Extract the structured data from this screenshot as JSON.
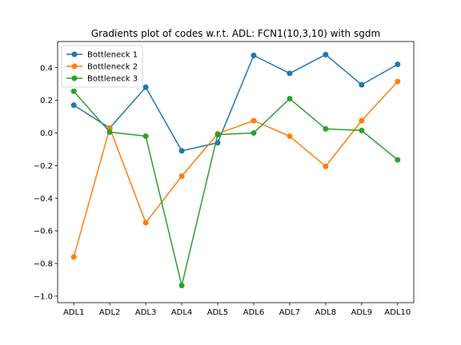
{
  "chart_data": {
    "type": "line",
    "title": "Gradients plot of codes w.r.t. ADL: FCN1(10,3,10) with sgdm",
    "xlabel": "",
    "ylabel": "",
    "categories": [
      "ADL1",
      "ADL2",
      "ADL3",
      "ADL4",
      "ADL5",
      "ADL6",
      "ADL7",
      "ADL8",
      "ADL9",
      "ADL10"
    ],
    "ylim": [
      -1.04,
      0.56
    ],
    "yticks": [
      -1.0,
      -0.8,
      -0.6,
      -0.4,
      -0.2,
      0.0,
      0.2,
      0.4
    ],
    "ytick_labels": [
      "−1.0",
      "−0.8",
      "−0.6",
      "−0.4",
      "−0.2",
      "0.0",
      "0.2",
      "0.4"
    ],
    "grid": false,
    "legend_position": "top-left",
    "series": [
      {
        "name": "Bottleneck 1",
        "color": "#1f77b4",
        "values": [
          0.17,
          0.03,
          0.28,
          -0.11,
          -0.06,
          0.475,
          0.365,
          0.48,
          0.295,
          0.42
        ]
      },
      {
        "name": "Bottleneck 2",
        "color": "#ff7f0e",
        "values": [
          -0.76,
          0.03,
          -0.55,
          -0.265,
          -0.005,
          0.075,
          -0.02,
          -0.205,
          0.075,
          0.315
        ]
      },
      {
        "name": "Bottleneck 3",
        "color": "#2ca02c",
        "values": [
          0.255,
          0.005,
          -0.02,
          -0.935,
          -0.01,
          0.0,
          0.21,
          0.025,
          0.015,
          -0.165
        ]
      }
    ]
  }
}
